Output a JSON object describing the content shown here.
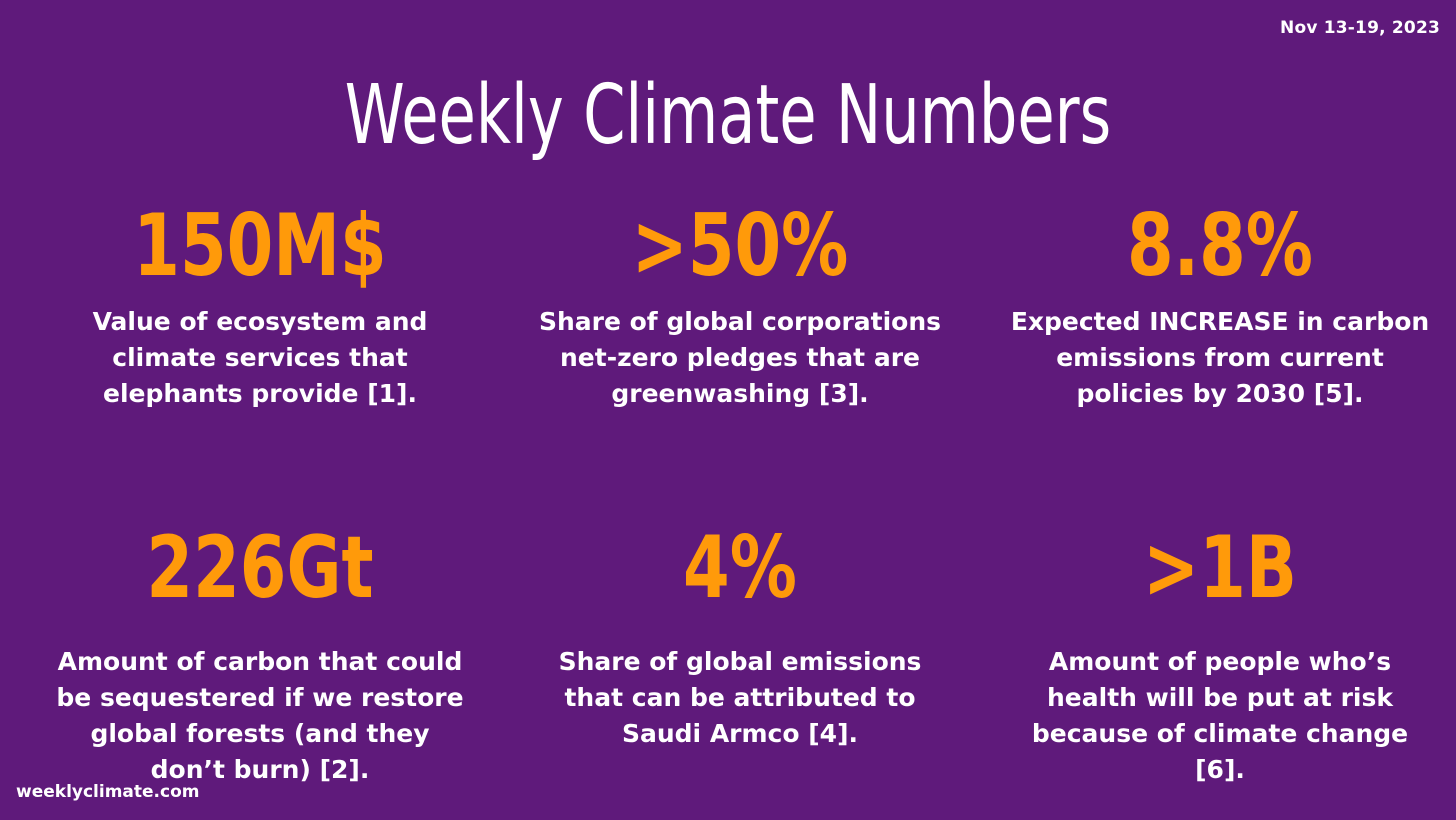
{
  "header": {
    "date": "Nov 13-19, 2023",
    "title": "Weekly Climate Numbers"
  },
  "stats": [
    {
      "value": "150M$",
      "description": "Value of ecosystem and climate services that elephants provide [1]."
    },
    {
      "value": ">50%",
      "description": "Share of global corporations net-zero pledges that are greenwashing [3]."
    },
    {
      "value": "8.8%",
      "description": "Expected INCREASE in carbon emissions from current policies by 2030 [5]."
    },
    {
      "value": "226Gt",
      "description": "Amount of carbon that could be sequestered if we restore global forests (and they don’t burn) [2]."
    },
    {
      "value": "4%",
      "description": "Share of global emissions that can be attributed to Saudi Armco [4]."
    },
    {
      "value": ">1B",
      "description": "Amount of people who’s health will be put at risk because of climate change [6]."
    }
  ],
  "footer": {
    "site": "weeklyclimate.com"
  },
  "colors": {
    "background": "#5f1a7b",
    "accent": "#ff9a0a",
    "text": "#ffffff"
  }
}
